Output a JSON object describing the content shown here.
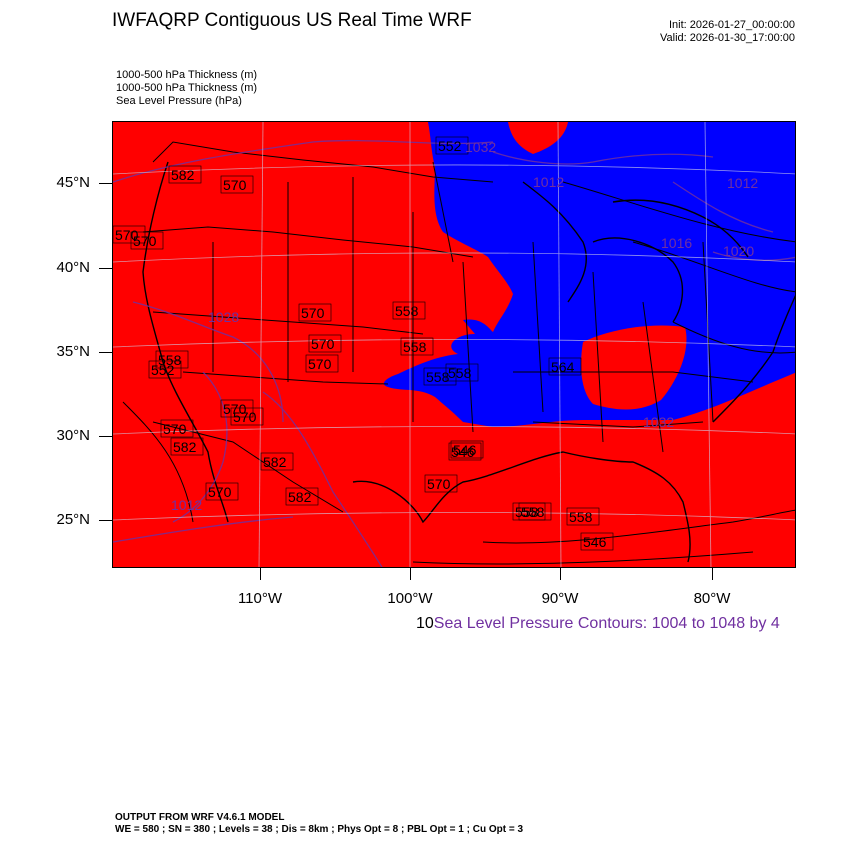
{
  "title": "IWFAQRP Contiguous US Real Time WRF",
  "init_label": "Init: 2026-01-27_00:00:00",
  "valid_label": "Valid: 2026-01-30_17:00:00",
  "fields": [
    "1000-500 hPa Thickness   (m)",
    "1000-500 hPa Thickness   (m)",
    "Sea Level Pressure   (hPa)"
  ],
  "colors": {
    "warm_fill": "#ff0000",
    "cold_fill": "#0000ff",
    "pressure_contour": "#7030a0",
    "thickness_contour": "#000000"
  },
  "latitudes": [
    "45°N",
    "40°N",
    "35°N",
    "30°N",
    "25°N"
  ],
  "longitudes": [
    "110°W",
    "100°W",
    "90°W",
    "80°W"
  ],
  "thickness_labels": [
    "570",
    "582",
    "570",
    "552",
    "570",
    "558",
    "570",
    "558",
    "570",
    "570",
    "558",
    "570",
    "570",
    "582",
    "558",
    "582",
    "570",
    "546",
    "546",
    "570",
    "582",
    "558",
    "558",
    "546",
    "552",
    "558",
    "564",
    "558",
    "570"
  ],
  "pressure_labels": [
    "1012",
    "1032",
    "1012",
    "1020",
    "1016",
    "1032",
    "1012",
    "1028"
  ],
  "contour_prefix": "10",
  "contour_text": "Sea Level Pressure Contours: 1004 to 1048 by 4",
  "model_line1": "OUTPUT FROM WRF V4.6.1 MODEL",
  "model_line2": "WE = 580 ; SN = 380 ; Levels = 38 ; Dis = 8km ; Phys Opt = 8 ; PBL Opt = 1 ; Cu Opt = 3"
}
